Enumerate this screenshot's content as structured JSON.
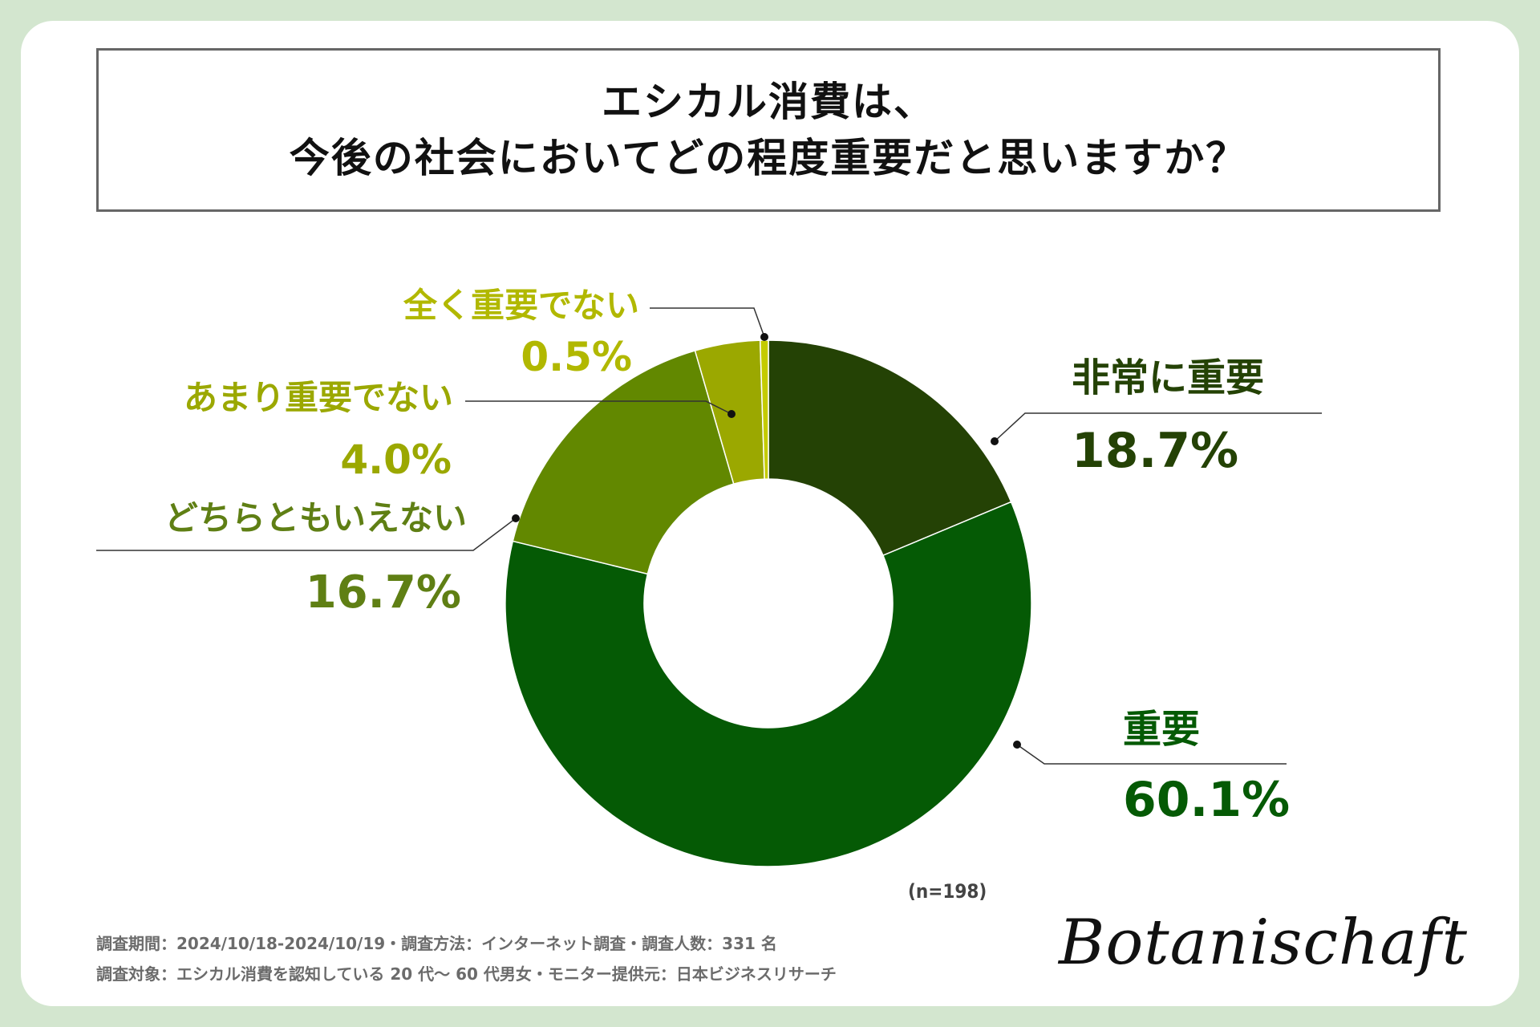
{
  "title": {
    "line1": "エシカル消費は、",
    "line2": "今後の社会においてどの程度重要だと思いますか？"
  },
  "sample_note": "(n=198)",
  "footer": {
    "line1": "調査期間：2024/10/18-2024/10/19・調査方法：インターネット調査・調査人数：331 名",
    "line2": "調査対象：エシカル消費を認知している 20 代〜 60 代男女・モニター提供元：日本ビジネスリサーチ"
  },
  "logo": "Botanischaft",
  "chart_data": {
    "type": "pie",
    "donut": true,
    "title": "エシカル消費は、今後の社会においてどの程度重要だと思いますか？",
    "start_angle_deg": 0,
    "direction": "clockwise",
    "slices": [
      {
        "label": "非常に重要",
        "value": 18.7,
        "value_label": "18.7%",
        "color": "#244205",
        "label_color": "#244205"
      },
      {
        "label": "重要",
        "value": 60.1,
        "value_label": "60.1%",
        "color": "#055a05",
        "label_color": "#055a05"
      },
      {
        "label": "どちらともいえない",
        "value": 16.7,
        "value_label": "16.7%",
        "color": "#628800",
        "label_color": "#5f7f14"
      },
      {
        "label": "あまり重要でない",
        "value": 4.0,
        "value_label": "4.0%",
        "color": "#9ba800",
        "label_color": "#9ba800"
      },
      {
        "label": "全く重要でない",
        "value": 0.5,
        "value_label": "0.5%",
        "color": "#c4cb00",
        "label_color": "#b1b800"
      }
    ],
    "n": 198
  }
}
